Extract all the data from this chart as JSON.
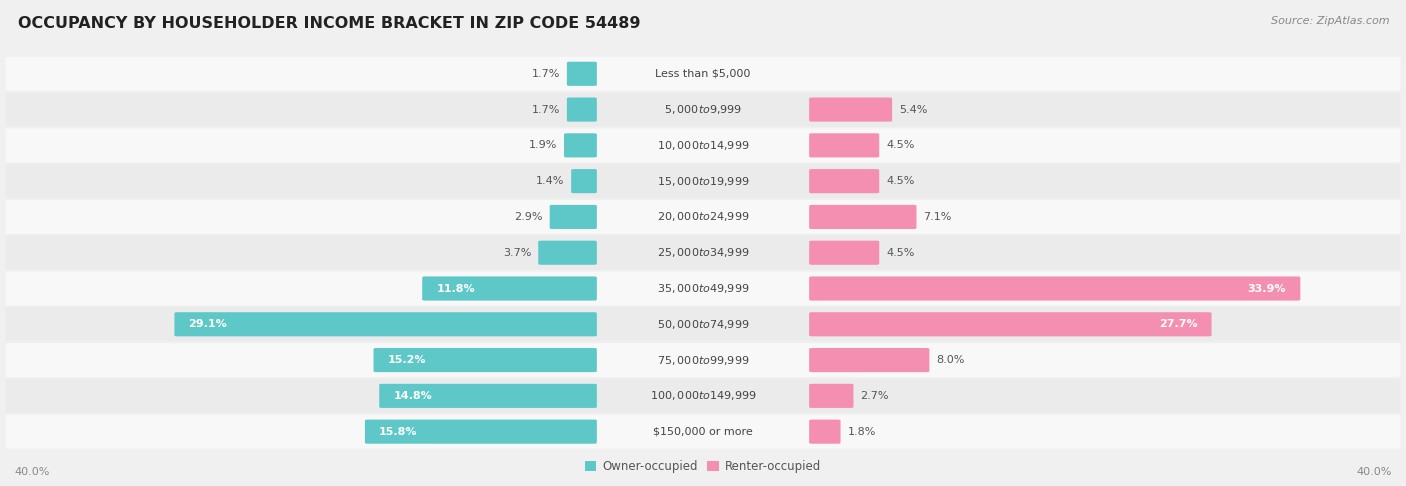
{
  "title": "OCCUPANCY BY HOUSEHOLDER INCOME BRACKET IN ZIP CODE 54489",
  "source": "Source: ZipAtlas.com",
  "categories": [
    "Less than $5,000",
    "$5,000 to $9,999",
    "$10,000 to $14,999",
    "$15,000 to $19,999",
    "$20,000 to $24,999",
    "$25,000 to $34,999",
    "$35,000 to $49,999",
    "$50,000 to $74,999",
    "$75,000 to $99,999",
    "$100,000 to $149,999",
    "$150,000 or more"
  ],
  "owner_values": [
    1.7,
    1.7,
    1.9,
    1.4,
    2.9,
    3.7,
    11.8,
    29.1,
    15.2,
    14.8,
    15.8
  ],
  "renter_values": [
    0.0,
    5.4,
    4.5,
    4.5,
    7.1,
    4.5,
    33.9,
    27.7,
    8.0,
    2.7,
    1.8
  ],
  "owner_color": "#5ec8c8",
  "renter_color": "#f48fb1",
  "axis_max": 40.0,
  "bg_color": "#f0f0f0",
  "row_bg_even": "#f8f8f8",
  "row_bg_odd": "#ebebeb",
  "title_fontsize": 11.5,
  "source_fontsize": 8,
  "label_fontsize": 8,
  "category_fontsize": 8,
  "legend_fontsize": 8.5,
  "axis_label_fontsize": 8
}
